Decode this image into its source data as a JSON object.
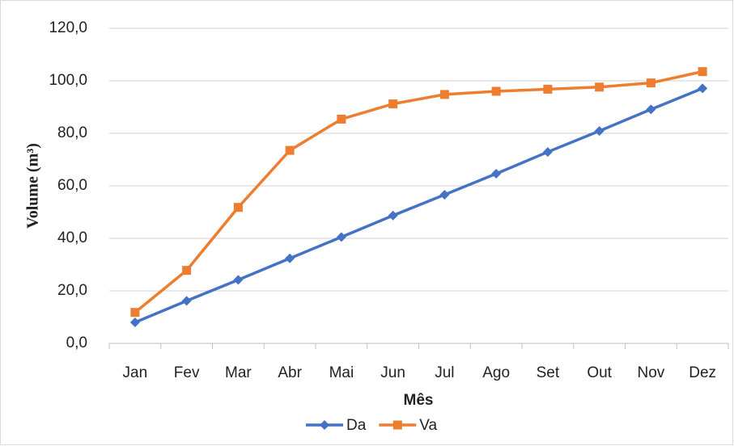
{
  "chart_data": {
    "type": "line",
    "x_label": "Mês",
    "y_label": "Volume (m³)",
    "categories": [
      "Jan",
      "Fev",
      "Mar",
      "Abr",
      "Mai",
      "Jun",
      "Jul",
      "Ago",
      "Set",
      "Out",
      "Nov",
      "Dez"
    ],
    "series": [
      {
        "name": "Da",
        "color": "#4472c4",
        "marker": "diamond",
        "values": [
          8,
          16.2,
          24.2,
          32.4,
          40.5,
          48.7,
          56.6,
          64.6,
          72.9,
          80.9,
          89.1,
          97.1
        ]
      },
      {
        "name": "Va",
        "color": "#ed7d31",
        "marker": "square",
        "values": [
          11.8,
          27.8,
          51.8,
          73.5,
          85.4,
          91.2,
          94.8,
          96,
          96.8,
          97.6,
          99.2,
          103.5
        ]
      }
    ],
    "ylim": [
      0,
      120
    ],
    "yticks": [
      {
        "value": 0,
        "label": "0,0"
      },
      {
        "value": 20,
        "label": "20,0"
      },
      {
        "value": 40,
        "label": "40,0"
      },
      {
        "value": 60,
        "label": "60,0"
      },
      {
        "value": 80,
        "label": "80,0"
      },
      {
        "value": 100,
        "label": "100,0"
      },
      {
        "value": 120,
        "label": "120,0"
      }
    ],
    "grid": true,
    "legend": "bottom"
  }
}
